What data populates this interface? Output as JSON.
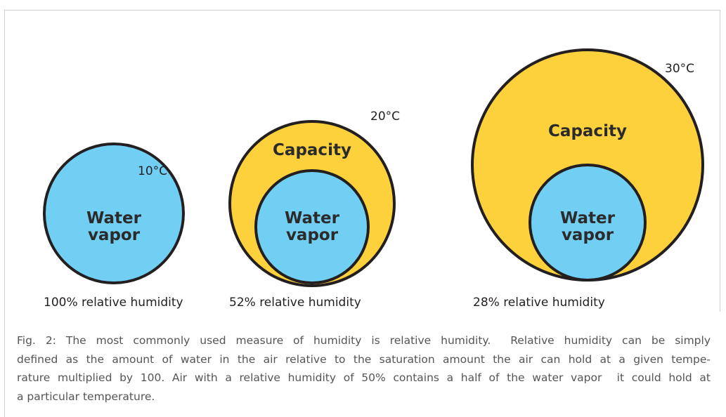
{
  "figure": {
    "panels": [
      {
        "temperature": "10°C",
        "inner": [
          "Water",
          "vapor"
        ],
        "caption": "100% relative humidity"
      },
      {
        "temperature": "20°C",
        "outer": "Capacity",
        "inner": [
          "Water",
          "vapor"
        ],
        "caption": "52% relative humidity"
      },
      {
        "temperature": "30°C",
        "outer": "Capacity",
        "inner": [
          "Water",
          "vapor"
        ],
        "caption": "28% relative humidity"
      }
    ],
    "caption_lines": [
      "Fig. 2: The most commonly used measure of humidity is relative humidity.  Relative humidity can be simply",
      "defined as the amount of water in the air relative to the saturation amount the air can hold at a given tempe-",
      "rature multiplied by 100. Air with a relative humidity of 50% contains a half of the water vapor  it could hold at",
      "a particular temperature."
    ]
  }
}
